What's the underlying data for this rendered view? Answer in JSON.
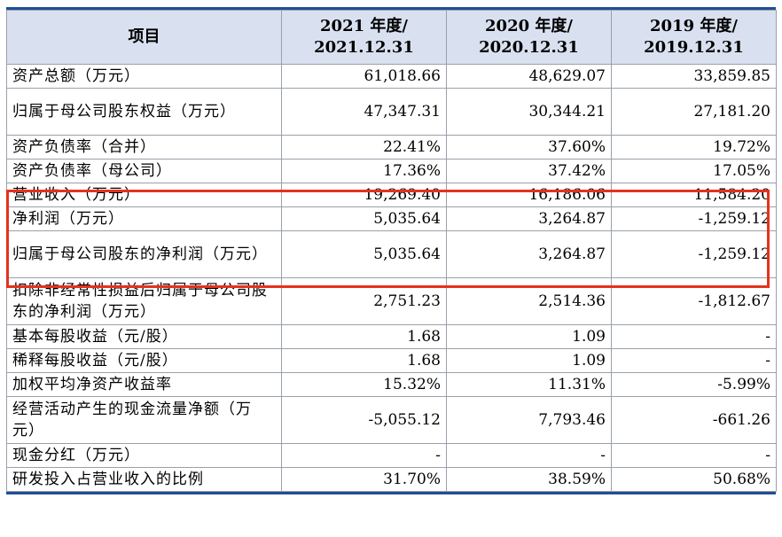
{
  "header": {
    "item": "项目",
    "col1_year": "2021 年度/",
    "col1_date": "2021.12.31",
    "col2_year": "2020 年度/",
    "col2_date": "2020.12.31",
    "col3_year": "2019 年度/",
    "col3_date": "2019.12.31"
  },
  "rows": [
    {
      "label": "资产总额（万元）",
      "v": [
        "61,018.66",
        "48,629.07",
        "33,859.85"
      ]
    },
    {
      "label": "归属于母公司股东权益（万元）",
      "v": [
        "47,347.31",
        "30,344.21",
        "27,181.20"
      ]
    },
    {
      "label": "资产负债率（合并）",
      "v": [
        "22.41%",
        "37.60%",
        "19.72%"
      ]
    },
    {
      "label": "资产负债率（母公司）",
      "v": [
        "17.36%",
        "37.42%",
        "17.05%"
      ]
    },
    {
      "label": "营业收入（万元）",
      "v": [
        "19,269.40",
        "16,186.06",
        "11,584.20"
      ]
    },
    {
      "label": "净利润（万元）",
      "v": [
        "5,035.64",
        "3,264.87",
        "-1,259.12"
      ]
    },
    {
      "label": "归属于母公司股东的净利润（万元）",
      "v": [
        "5,035.64",
        "3,264.87",
        "-1,259.12"
      ]
    },
    {
      "label": "扣除非经常性损益后归属于母公司股东的净利润（万元）",
      "v": [
        "2,751.23",
        "2,514.36",
        "-1,812.67"
      ]
    },
    {
      "label": "基本每股收益（元/股）",
      "v": [
        "1.68",
        "1.09",
        "-"
      ]
    },
    {
      "label": "稀释每股收益（元/股）",
      "v": [
        "1.68",
        "1.09",
        "-"
      ]
    },
    {
      "label": "加权平均净资产收益率",
      "v": [
        "15.32%",
        "11.31%",
        "-5.99%"
      ]
    },
    {
      "label": "经营活动产生的现金流量净额（万元）",
      "v": [
        "-5,055.12",
        "7,793.46",
        "-661.26"
      ]
    },
    {
      "label": "现金分红（万元）",
      "v": [
        "-",
        "-",
        "-"
      ]
    },
    {
      "label": "研发投入占营业收入的比例",
      "v": [
        "31.70%",
        "38.59%",
        "50.68%"
      ]
    }
  ],
  "highlight_color": "#e5321d",
  "header_bg": "#d9e1f0"
}
